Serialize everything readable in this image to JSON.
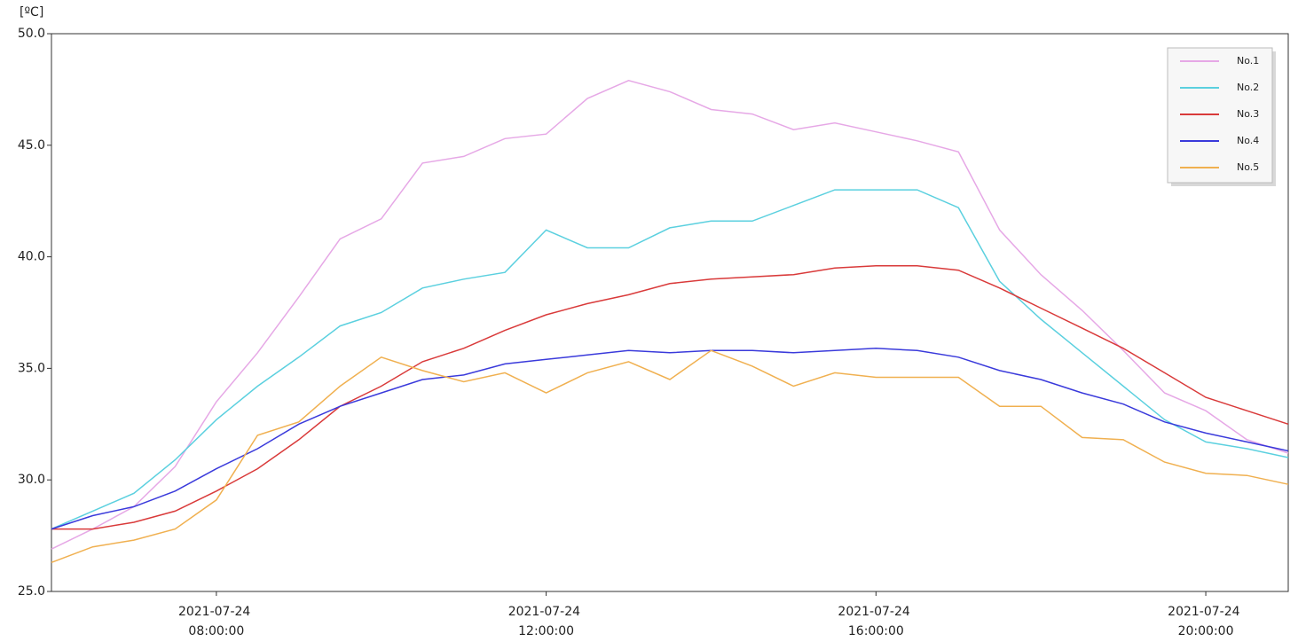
{
  "chart_data": {
    "type": "line",
    "y_unit": "[ºC]",
    "x": [
      "2021-07-24 06:00:00",
      "2021-07-24 06:30:00",
      "2021-07-24 07:00:00",
      "2021-07-24 07:30:00",
      "2021-07-24 08:00:00",
      "2021-07-24 08:30:00",
      "2021-07-24 09:00:00",
      "2021-07-24 09:30:00",
      "2021-07-24 10:00:00",
      "2021-07-24 10:30:00",
      "2021-07-24 11:00:00",
      "2021-07-24 11:30:00",
      "2021-07-24 12:00:00",
      "2021-07-24 12:30:00",
      "2021-07-24 13:00:00",
      "2021-07-24 13:30:00",
      "2021-07-24 14:00:00",
      "2021-07-24 14:30:00",
      "2021-07-24 15:00:00",
      "2021-07-24 15:30:00",
      "2021-07-24 16:00:00",
      "2021-07-24 16:30:00",
      "2021-07-24 17:00:00",
      "2021-07-24 17:30:00",
      "2021-07-24 18:00:00",
      "2021-07-24 18:30:00",
      "2021-07-24 19:00:00",
      "2021-07-24 19:30:00",
      "2021-07-24 20:00:00",
      "2021-07-24 20:30:00",
      "2021-07-24 21:00:00"
    ],
    "series": [
      {
        "name": "No.1",
        "color": "#e6a8e6",
        "values": [
          26.9,
          27.8,
          28.8,
          30.6,
          33.5,
          35.7,
          38.2,
          40.8,
          41.7,
          44.2,
          44.5,
          45.3,
          45.5,
          47.1,
          47.9,
          47.4,
          46.6,
          46.4,
          45.7,
          46.0,
          45.6,
          45.2,
          44.7,
          41.2,
          39.2,
          37.6,
          35.8,
          33.9,
          33.1,
          31.8,
          31.2
        ]
      },
      {
        "name": "No.2",
        "color": "#5bd0df",
        "values": [
          27.8,
          28.6,
          29.4,
          30.9,
          32.7,
          34.2,
          35.5,
          36.9,
          37.5,
          38.6,
          39.0,
          39.3,
          41.2,
          40.4,
          40.4,
          41.3,
          41.6,
          41.6,
          42.3,
          43.0,
          43.0,
          43.0,
          42.2,
          38.9,
          37.2,
          35.7,
          34.2,
          32.7,
          31.7,
          31.4,
          31.0
        ]
      },
      {
        "name": "No.3",
        "color": "#d93a3a",
        "values": [
          27.8,
          27.8,
          28.1,
          28.6,
          29.5,
          30.5,
          31.8,
          33.3,
          34.2,
          35.3,
          35.9,
          36.7,
          37.4,
          37.9,
          38.3,
          38.8,
          39.0,
          39.1,
          39.2,
          39.5,
          39.6,
          39.6,
          39.4,
          38.6,
          37.7,
          36.8,
          35.9,
          34.8,
          33.7,
          33.1,
          32.5
        ]
      },
      {
        "name": "No.4",
        "color": "#3a3adb",
        "values": [
          27.8,
          28.4,
          28.8,
          29.5,
          30.5,
          31.4,
          32.5,
          33.3,
          33.9,
          34.5,
          34.7,
          35.2,
          35.4,
          35.6,
          35.8,
          35.7,
          35.8,
          35.8,
          35.7,
          35.8,
          35.9,
          35.8,
          35.5,
          34.9,
          34.5,
          33.9,
          33.4,
          32.6,
          32.1,
          31.7,
          31.3
        ]
      },
      {
        "name": "No.5",
        "color": "#f0b050",
        "values": [
          26.3,
          27.0,
          27.3,
          27.8,
          29.1,
          32.0,
          32.6,
          34.2,
          35.5,
          34.9,
          34.4,
          34.8,
          33.9,
          34.8,
          35.3,
          34.5,
          35.8,
          35.1,
          34.2,
          34.8,
          34.6,
          34.6,
          34.6,
          33.3,
          33.3,
          31.9,
          31.8,
          30.8,
          30.3,
          30.2,
          29.8
        ]
      }
    ],
    "xlim": [
      "2021-07-24 06:00:00",
      "2021-07-24 21:00:00"
    ],
    "xticks": [
      "2021-07-24 08:00:00",
      "2021-07-24 12:00:00",
      "2021-07-24 16:00:00",
      "2021-07-24 20:00:00"
    ],
    "ylim": [
      25,
      50
    ],
    "yticks": [
      {
        "value": 25,
        "label": "25.0"
      },
      {
        "value": 30,
        "label": "30.0"
      },
      {
        "value": 35,
        "label": "35.0"
      },
      {
        "value": 40,
        "label": "40.0"
      },
      {
        "value": 45,
        "label": "45.0"
      },
      {
        "value": 50,
        "label": "50.0"
      }
    ],
    "legend": "top-right"
  }
}
